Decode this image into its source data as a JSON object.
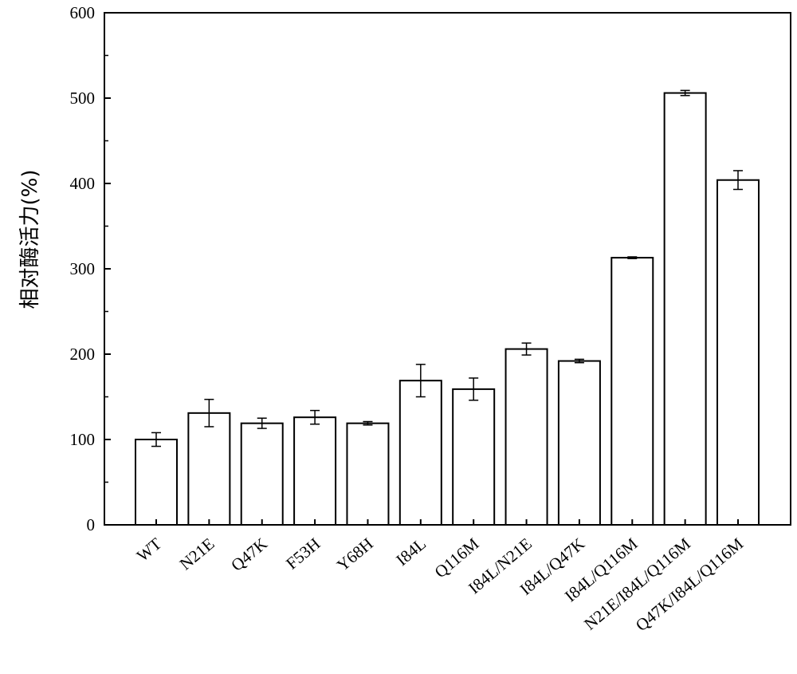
{
  "chart_data": {
    "type": "bar",
    "title": "",
    "xlabel": "",
    "ylabel": "相对酶活力(%)",
    "ylim": [
      0,
      600
    ],
    "yticks": [
      "0",
      "100",
      "200",
      "300",
      "400",
      "500",
      "600"
    ],
    "grid": false,
    "categories": [
      "WT",
      "N21E",
      "Q47K",
      "F53H",
      "Y68H",
      "I84L",
      "Q116M",
      "I84L/N21E",
      "I84L/Q47K",
      "I84L/Q116M",
      "N21E/I84L/Q116M",
      "Q47K/I84L/Q116M"
    ],
    "values": [
      100,
      131,
      119,
      126,
      119,
      169,
      159,
      206,
      192,
      313,
      506,
      404
    ],
    "errors": [
      8,
      16,
      6,
      8,
      2,
      19,
      13,
      7,
      2,
      1,
      3,
      11
    ],
    "bar_fill": "#ffffff",
    "bar_stroke": "#000000"
  }
}
